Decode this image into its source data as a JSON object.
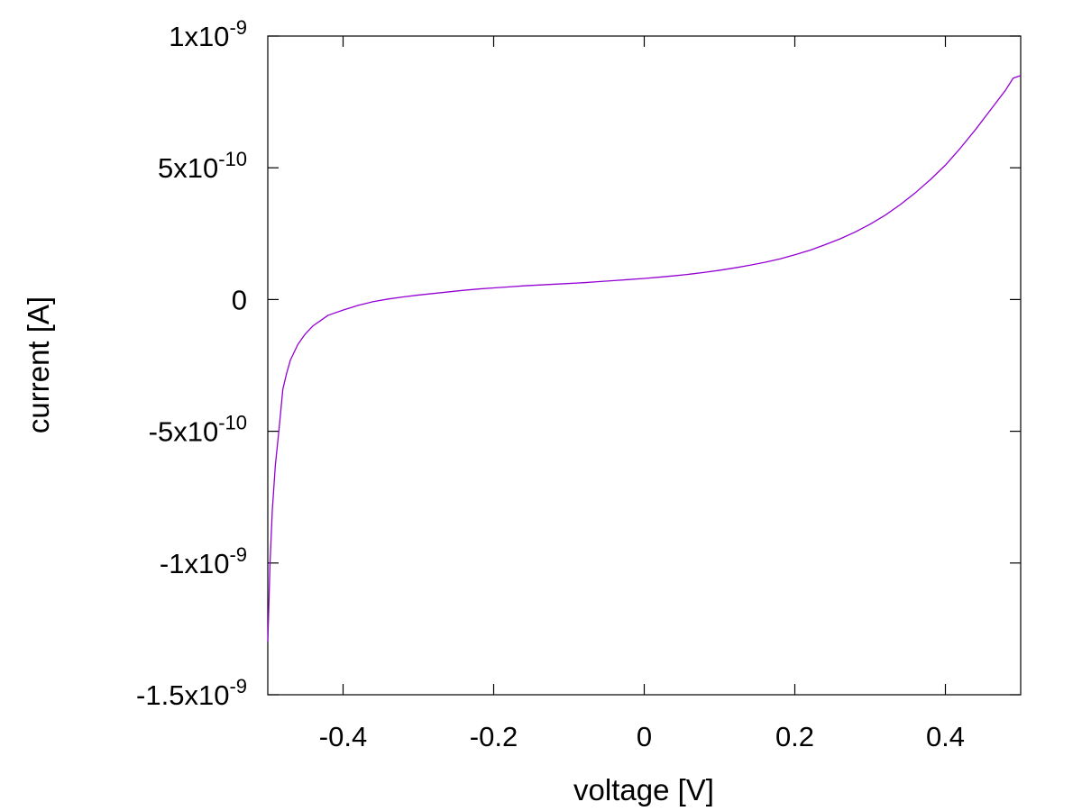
{
  "chart_data": {
    "type": "line",
    "title": "",
    "xlabel": "voltage [V]",
    "ylabel": "current [A]",
    "xlim": [
      -0.5,
      0.5
    ],
    "ylim": [
      -1.5e-09,
      1e-09
    ],
    "grid": false,
    "legend": "none",
    "x_ticks": [
      {
        "value": -0.4,
        "label": "-0.4"
      },
      {
        "value": -0.2,
        "label": "-0.2"
      },
      {
        "value": 0,
        "label": "0"
      },
      {
        "value": 0.2,
        "label": "0.2"
      },
      {
        "value": 0.4,
        "label": "0.4"
      }
    ],
    "y_ticks": [
      {
        "value": 1e-09,
        "mantissa": "1x10",
        "exponent": "-9"
      },
      {
        "value": 5e-10,
        "mantissa": "5x10",
        "exponent": "-10"
      },
      {
        "value": 0,
        "mantissa": "0",
        "exponent": ""
      },
      {
        "value": -5e-10,
        "mantissa": "-5x10",
        "exponent": "-10"
      },
      {
        "value": -1e-09,
        "mantissa": "-1x10",
        "exponent": "-9"
      },
      {
        "value": -1.5e-09,
        "mantissa": "-1.5x10",
        "exponent": "-9"
      }
    ],
    "series": [
      {
        "color": "#9400d3",
        "x": [
          -0.5,
          -0.497,
          -0.494,
          -0.49,
          -0.485,
          -0.48,
          -0.475,
          -0.47,
          -0.46,
          -0.45,
          -0.44,
          -0.43,
          -0.42,
          -0.4,
          -0.38,
          -0.36,
          -0.34,
          -0.32,
          -0.3,
          -0.28,
          -0.26,
          -0.24,
          -0.22,
          -0.2,
          -0.18,
          -0.16,
          -0.14,
          -0.12,
          -0.1,
          -0.08,
          -0.06,
          -0.04,
          -0.02,
          0,
          0.02,
          0.04,
          0.06,
          0.08,
          0.1,
          0.12,
          0.14,
          0.16,
          0.18,
          0.2,
          0.22,
          0.24,
          0.26,
          0.28,
          0.3,
          0.32,
          0.34,
          0.36,
          0.38,
          0.4,
          0.42,
          0.44,
          0.46,
          0.48,
          0.49,
          0.5
        ],
        "y": [
          -1.3e-09,
          -1e-09,
          -8e-10,
          -6.3e-10,
          -4.9e-10,
          -3.4e-10,
          -2.8e-10,
          -2.3e-10,
          -1.7e-10,
          -1.3e-10,
          -1e-10,
          -8e-11,
          -6e-11,
          -4e-11,
          -2.2e-11,
          -8e-12,
          2e-12,
          1e-11,
          1.7e-11,
          2.3e-11,
          2.9e-11,
          3.5e-11,
          4e-11,
          4.4e-11,
          4.8e-11,
          5.2e-11,
          5.5e-11,
          5.8e-11,
          6.1e-11,
          6.4e-11,
          6.8e-11,
          7.2e-11,
          7.6e-11,
          8e-11,
          8.5e-11,
          9e-11,
          9.6e-11,
          1.03e-10,
          1.11e-10,
          1.2e-10,
          1.3e-10,
          1.41e-10,
          1.54e-10,
          1.7e-10,
          1.87e-10,
          2.08e-10,
          2.3e-10,
          2.56e-10,
          2.86e-10,
          3.2e-10,
          3.6e-10,
          4.05e-10,
          4.55e-10,
          5.1e-10,
          5.75e-10,
          6.45e-10,
          7.2e-10,
          7.95e-10,
          8.4e-10,
          8.5e-10
        ]
      }
    ]
  }
}
